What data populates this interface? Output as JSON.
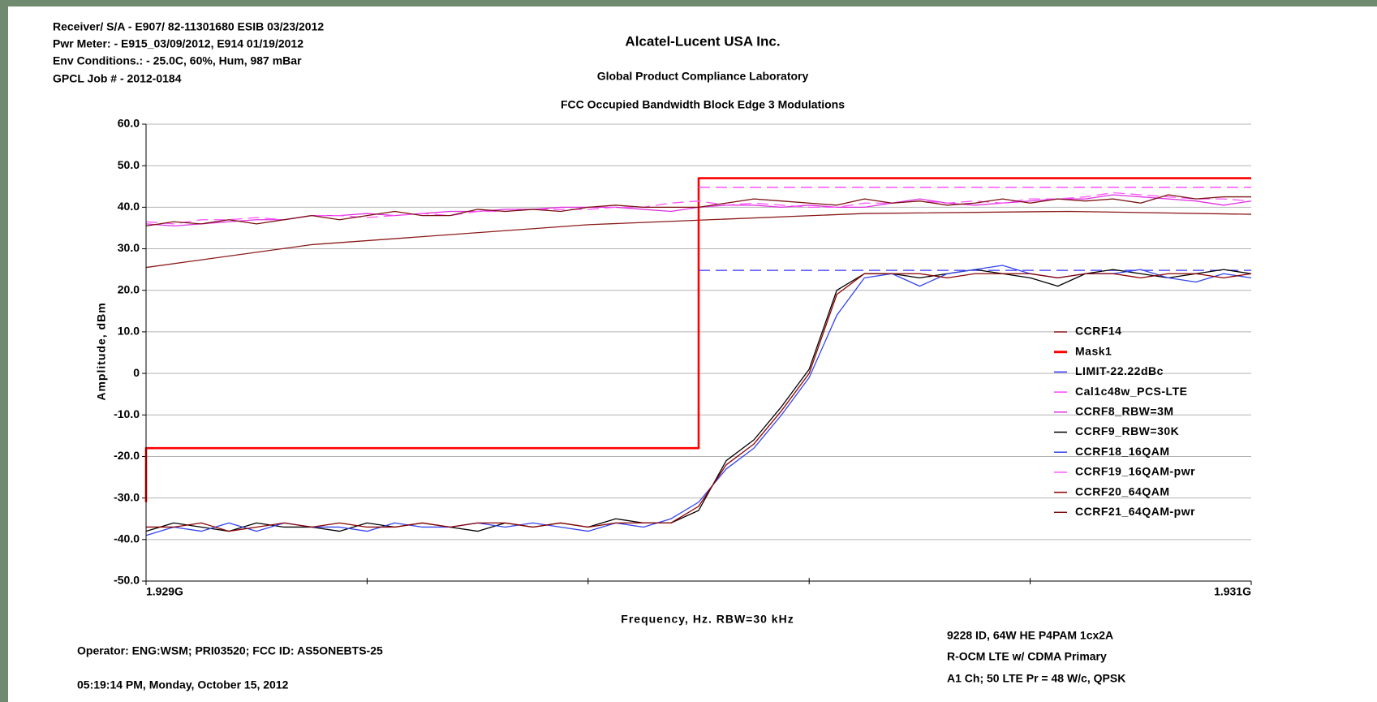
{
  "chart_data": {
    "type": "line",
    "header_notes": [
      "Receiver/ S/A - E907/ 82-11301680 ESIB 03/23/2012",
      "Pwr Meter: - E915_03/09/2012, E914 01/19/2012",
      "Env Conditions.: - 25.0C, 60%, Hum, 987 mBar",
      "GPCL Job # - 2012-0184"
    ],
    "title": "Alcatel-Lucent USA Inc.",
    "subtitle": "Global Product Compliance Laboratory",
    "subtitle2": "FCC Occupied Bandwidth Block Edge 3 Modulations",
    "x_label": "Frequency, Hz.   RBW=30 kHz",
    "y_label": "Amplitude, dBm",
    "footer_notes": [
      "Operator:  ENG:WSM; PRI03520;  FCC ID: AS5ONEBTS-25",
      "05:19:14 PM, Monday, October 15, 2012"
    ],
    "device_notes": [
      "9228 ID, 64W HE P4PAM 1cx2A",
      "R-OCM LTE w/ CDMA     Primary",
      "A1 Ch; 50 LTE Pr = 48 W/c, QPSK"
    ],
    "xlim": [
      1929000000,
      1931000000
    ],
    "xticks": [
      {
        "value": 1929000000,
        "label": "1.929G"
      },
      {
        "value": 1931000000,
        "label": "1.931G"
      }
    ],
    "xminorticks": [
      1929400000,
      1929800000,
      1930200000,
      1930600000
    ],
    "ylim": [
      -50,
      60
    ],
    "yticks": [
      {
        "value": 60,
        "label": "60.0"
      },
      {
        "value": 50,
        "label": "50.0"
      },
      {
        "value": 40,
        "label": "40.0"
      },
      {
        "value": 30,
        "label": "30.0"
      },
      {
        "value": 20,
        "label": "20.0"
      },
      {
        "value": 10,
        "label": "10.0"
      },
      0,
      {
        "value": -10,
        "label": "-10.0"
      },
      {
        "value": -20,
        "label": "-20.0"
      },
      {
        "value": -30,
        "label": "-30.0"
      },
      {
        "value": -40,
        "label": "-40.0"
      },
      {
        "value": -50,
        "label": "-50.0"
      }
    ],
    "grid": true,
    "x": [
      1929000000,
      1929050000,
      1929100000,
      1929150000,
      1929200000,
      1929250000,
      1929300000,
      1929350000,
      1929400000,
      1929450000,
      1929500000,
      1929550000,
      1929600000,
      1929650000,
      1929700000,
      1929750000,
      1929800000,
      1929850000,
      1929900000,
      1929950000,
      1930000000,
      1930050000,
      1930100000,
      1930150000,
      1930200000,
      1930250000,
      1930300000,
      1930350000,
      1930400000,
      1930450000,
      1930500000,
      1930550000,
      1930600000,
      1930650000,
      1930700000,
      1930750000,
      1930800000,
      1930850000,
      1930900000,
      1930950000,
      1931000000
    ],
    "series": [
      {
        "name": "CCRF14",
        "color": "#8b1a1a",
        "x": [
          1929000000,
          1929300000,
          1929800000,
          1930300000,
          1930670000,
          1931000000
        ],
        "values": [
          25.5,
          31,
          35.8,
          38.5,
          39,
          38.3
        ]
      },
      {
        "name": "Mask1",
        "color": "#ff0000",
        "emphasis": true,
        "x": [
          1929000000,
          1929000000,
          1930000000,
          1930000000,
          1931000000
        ],
        "values": [
          -31,
          -18,
          -18,
          47,
          47
        ]
      },
      {
        "name": "LIMIT-22.22dBc",
        "color": "#3333ff",
        "dashed": true,
        "x": [
          1930000000,
          1931000000
        ],
        "values": [
          24.8,
          24.8
        ]
      },
      {
        "name": "Cal1c48w_PCS-LTE",
        "color": "#ff44ff",
        "dashed": true,
        "x": [
          1930000000,
          1931000000
        ],
        "values": [
          44.8,
          44.8
        ]
      },
      {
        "name": "CCRF8_RBW=3M",
        "color": "#e030e0",
        "values": [
          36,
          35.5,
          36,
          36.5,
          37,
          37,
          38,
          38,
          38.5,
          38,
          38.5,
          39,
          39,
          39.5,
          39.5,
          40,
          40,
          40,
          39.5,
          39,
          40,
          40.5,
          40.5,
          40,
          40.5,
          40,
          40,
          41,
          42,
          41,
          40.5,
          41,
          41.5,
          42,
          42,
          43,
          42.5,
          42,
          41.5,
          40.5,
          41.5
        ]
      },
      {
        "name": "CCRF9_RBW=30K",
        "color": "#000000",
        "values": [
          -38,
          -36,
          -37,
          -38,
          -36,
          -37,
          -37,
          -38,
          -36,
          -37,
          -36,
          -37,
          -38,
          -36,
          -37,
          -36,
          -37,
          -35,
          -36,
          -36,
          -33,
          -21,
          -16,
          -8,
          1,
          20,
          24,
          24,
          23,
          24,
          25,
          24,
          23,
          21,
          24,
          25,
          24,
          23,
          24,
          25,
          24
        ]
      },
      {
        "name": "CCRF18_16QAM",
        "color": "#3344ee",
        "values": [
          -39,
          -37,
          -38,
          -36,
          -38,
          -36,
          -37,
          -37,
          -38,
          -36,
          -37,
          -37,
          -36,
          -37,
          -36,
          -37,
          -38,
          -36,
          -37,
          -35,
          -31,
          -23,
          -18,
          -10,
          -1,
          14,
          23,
          24,
          21,
          24,
          25,
          26,
          24,
          23,
          24,
          24,
          25,
          23,
          22,
          24,
          23
        ]
      },
      {
        "name": "CCRF19_16QAM-pwr",
        "color": "#ff55ff",
        "dashed": true,
        "values": [
          36.5,
          36,
          37,
          37,
          37.5,
          37,
          38,
          38,
          37.5,
          38,
          38.5,
          38,
          39,
          39,
          39.5,
          39.5,
          39.5,
          40,
          40,
          41,
          41.5,
          40.5,
          41,
          40.5,
          40,
          40,
          41,
          41,
          41.5,
          41,
          41.5,
          41,
          42,
          42,
          42.5,
          43.5,
          43,
          42.5,
          42,
          42,
          41.5
        ]
      },
      {
        "name": "CCRF20_64QAM",
        "color": "#8b0000",
        "values": [
          -37,
          -37,
          -36,
          -38,
          -37,
          -36,
          -37,
          -36,
          -37,
          -37,
          -36,
          -37,
          -36,
          -36,
          -37,
          -36,
          -37,
          -36,
          -36,
          -36,
          -32,
          -22,
          -17,
          -9,
          0,
          19,
          24,
          24,
          24,
          23,
          24,
          24,
          24,
          23,
          24,
          24,
          23,
          24,
          24,
          23,
          24
        ]
      },
      {
        "name": "CCRF21_64QAM-pwr",
        "color": "#7a1010",
        "values": [
          35.5,
          36.5,
          36,
          37,
          36,
          37,
          38,
          37,
          38,
          39,
          38,
          38,
          39.5,
          39,
          39.5,
          39,
          40,
          40.5,
          40,
          40,
          40,
          41,
          42,
          41.5,
          41,
          40.5,
          42,
          41,
          41.5,
          40.5,
          41,
          42,
          41,
          42,
          41.5,
          42,
          41,
          43,
          42,
          42.5,
          42.5
        ]
      }
    ]
  }
}
